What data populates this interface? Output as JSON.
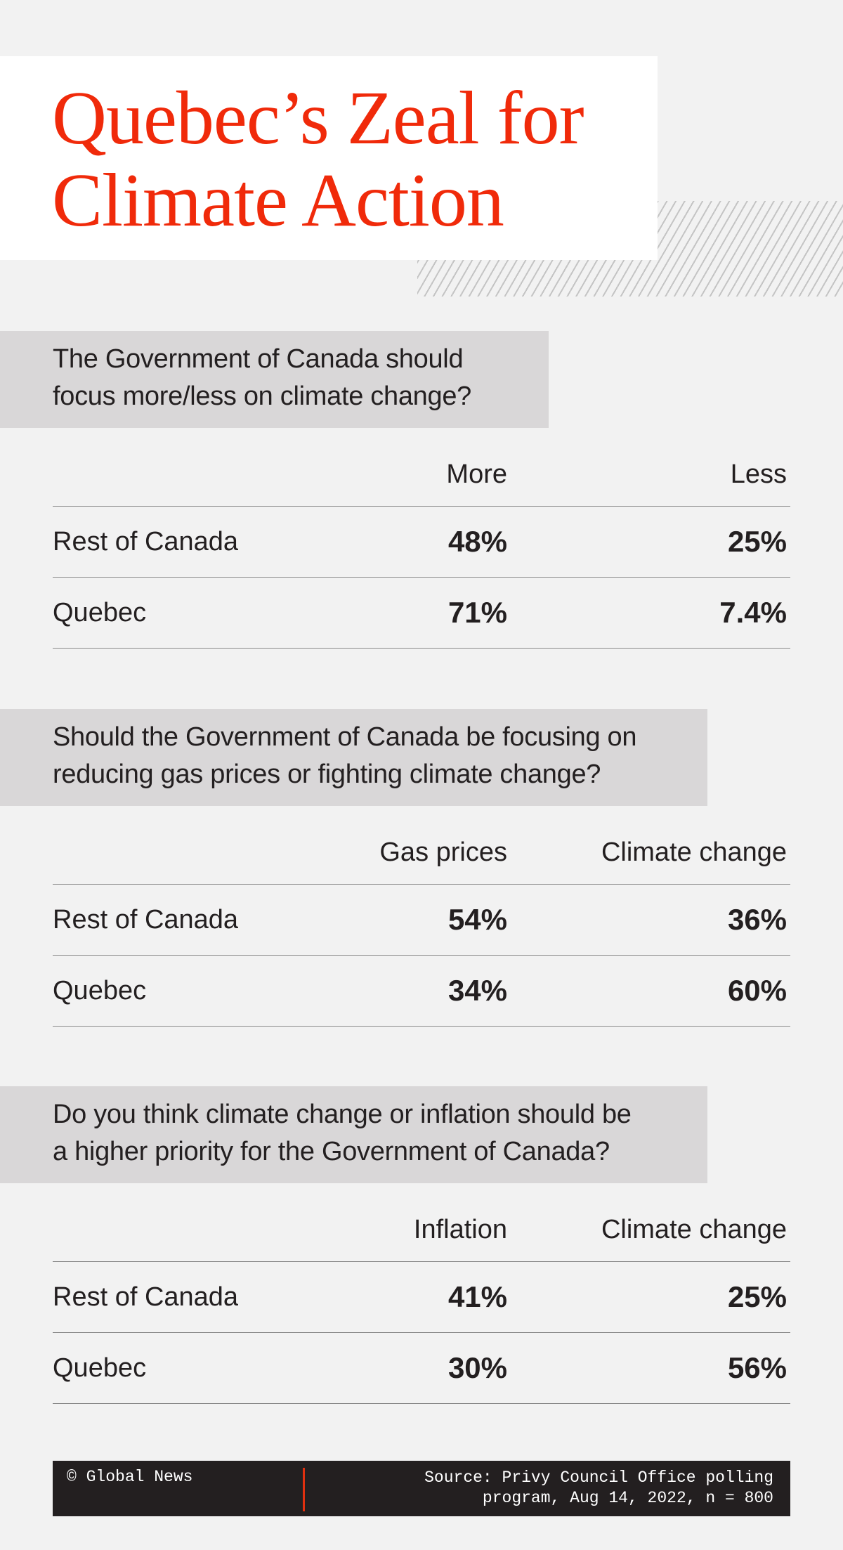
{
  "title": {
    "line1": "Quebec’s Zeal for",
    "line2": "Climate Action"
  },
  "colors": {
    "title": "#f02a0a",
    "background": "#f2f2f2",
    "question_box": "#d9d7d8",
    "footer": "#231f20",
    "footer_divider": "#e0300f"
  },
  "sections": [
    {
      "question_line1": "The Government of Canada should",
      "question_line2": "focus more/less on climate change?",
      "headers": [
        "",
        "More",
        "Less"
      ],
      "rows": [
        {
          "label": "Rest of Canada",
          "values": [
            "48%",
            "25%"
          ]
        },
        {
          "label": "Quebec",
          "values": [
            "71%",
            "7.4%"
          ]
        }
      ]
    },
    {
      "question_line1": "Should the Government of Canada be focusing on",
      "question_line2": "reducing gas prices or fighting climate change?",
      "headers": [
        "",
        "Gas prices",
        "Climate change"
      ],
      "rows": [
        {
          "label": "Rest of Canada",
          "values": [
            "54%",
            "36%"
          ]
        },
        {
          "label": "Quebec",
          "values": [
            "34%",
            "60%"
          ]
        }
      ]
    },
    {
      "question_line1": "Do you think climate change or inflation should be",
      "question_line2": "a higher priority for the Government of Canada?",
      "headers": [
        "",
        "Inflation",
        "Climate change"
      ],
      "rows": [
        {
          "label": "Rest of Canada",
          "values": [
            "41%",
            "25%"
          ]
        },
        {
          "label": "Quebec",
          "values": [
            "30%",
            "56%"
          ]
        }
      ]
    }
  ],
  "footer": {
    "credit": "© Global News",
    "source_line1": "Source: Privy Council Office polling",
    "source_line2": "program, Aug 14, 2022, n = 800"
  }
}
